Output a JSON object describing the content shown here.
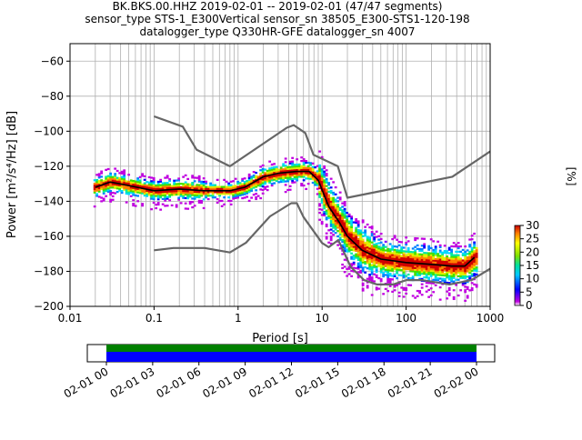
{
  "title_lines": [
    "BK.BKS.00.HHZ   2019-02-01 -- 2019-02-01  (47/47 segments)",
    "sensor_type STS-1_E300Vertical sensor_sn 38505_E300-STS1-120-198",
    "datalogger_type Q330HR-GFE datalogger_sn 4007"
  ],
  "chart_data": {
    "type": "heatmap",
    "title": "BK.BKS.00.HHZ   2019-02-01 -- 2019-02-01  (47/47 segments)",
    "subtitle": [
      "sensor_type STS-1_E300Vertical sensor_sn 38505_E300-STS1-120-198",
      "datalogger_type Q330HR-GFE datalogger_sn 4007"
    ],
    "xlabel": "Period [s]",
    "ylabel": "Power [m²/s⁴/Hz] [dB]",
    "xscale": "log",
    "xlim": [
      0.01,
      1000
    ],
    "ylim": [
      -200,
      -50
    ],
    "xticks": [
      0.01,
      0.1,
      1,
      10,
      100,
      1000
    ],
    "xtick_labels": [
      "0.01",
      "0.1",
      "1",
      "10",
      "100",
      "1000"
    ],
    "yticks": [
      -200,
      -180,
      -160,
      -140,
      -120,
      -100,
      -80,
      -60
    ],
    "ytick_labels": [
      "−200",
      "−180",
      "−160",
      "−140",
      "−120",
      "−100",
      "−80",
      "−60"
    ],
    "grid": true,
    "colorbar": {
      "label": "[%]",
      "range": [
        0,
        30
      ],
      "ticks": [
        0,
        5,
        10,
        15,
        20,
        25,
        30
      ],
      "tick_labels": [
        "0",
        "5",
        "10",
        "15",
        "20",
        "25",
        "30"
      ]
    },
    "series": [
      {
        "role": "noise-model-high",
        "color": "#666666",
        "x": [
          0.1,
          0.22,
          0.32,
          0.8,
          3.8,
          4.6,
          6.3,
          7.9,
          15.4,
          20,
          354.8,
          1000
        ],
        "y": [
          -91.5,
          -97.4,
          -110.5,
          -120,
          -98,
          -96.5,
          -101,
          -113.5,
          -120,
          -138,
          -126,
          -111.5
        ]
      },
      {
        "role": "noise-model-low",
        "color": "#666666",
        "x": [
          0.1,
          0.17,
          0.4,
          0.8,
          1.24,
          2.4,
          4.3,
          5,
          6,
          10,
          12,
          15.6,
          21.9,
          31.6,
          45,
          70,
          101,
          154,
          328,
          600,
          1000
        ],
        "y": [
          -168,
          -166.7,
          -166.7,
          -169.2,
          -163.7,
          -148.6,
          -141.1,
          -141.1,
          -149,
          -163.8,
          -166.2,
          -162.1,
          -177.5,
          -185,
          -187.5,
          -187.5,
          -185,
          -185,
          -187.5,
          -185,
          -178.5
        ]
      },
      {
        "role": "mode",
        "color": "#000000",
        "x": [
          0.02,
          0.03,
          0.05,
          0.1,
          0.2,
          0.4,
          0.8,
          1.2,
          2,
          3,
          5,
          7,
          9,
          12,
          16,
          20,
          30,
          50,
          100,
          200,
          350,
          500,
          650
        ],
        "y": [
          -132,
          -129,
          -131,
          -134,
          -133,
          -134,
          -134,
          -132,
          -126,
          -124,
          -123,
          -123,
          -128,
          -143,
          -152,
          -160,
          -168,
          -173,
          -175,
          -176,
          -177,
          -177,
          -172
        ]
      }
    ],
    "time_axis": {
      "ticks": [
        "02-01 00",
        "02-01 03",
        "02-01 06",
        "02-01 09",
        "02-01 12",
        "02-01 15",
        "02-01 18",
        "02-01 21",
        "02-02 00"
      ],
      "coverage_colors": [
        "#008000",
        "#0000ff"
      ]
    }
  }
}
